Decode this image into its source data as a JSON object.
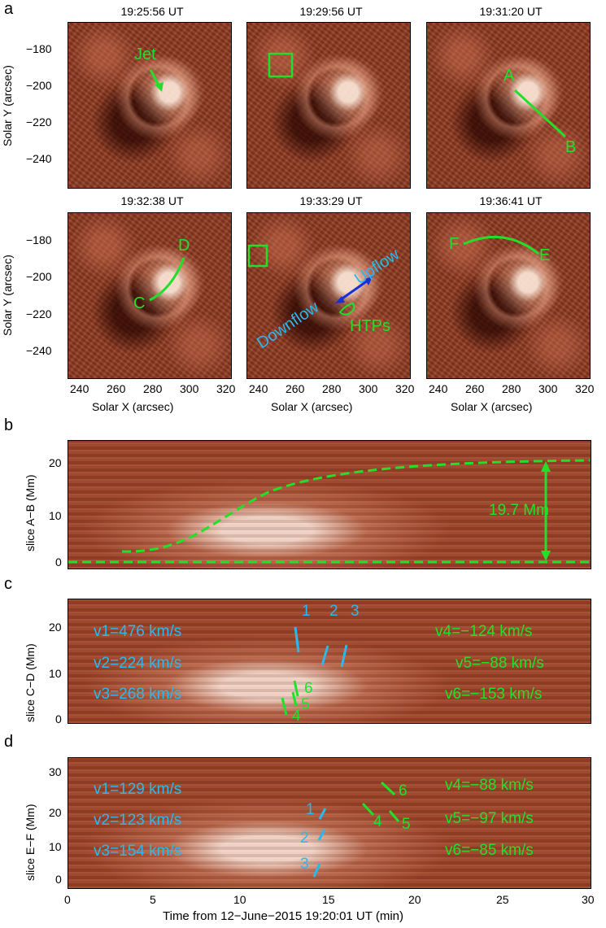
{
  "panel_a": {
    "letter": "a",
    "titles": [
      "19:25:56 UT",
      "19:29:56 UT",
      "19:31:20 UT",
      "19:32:38 UT",
      "19:33:29 UT",
      "19:36:41 UT"
    ],
    "ylabel": "Solar Y (arcsec)",
    "xlabel": "Solar X (arcsec)",
    "yticks": [
      "−180",
      "−200",
      "−220",
      "−240"
    ],
    "xticks": [
      "240",
      "260",
      "280",
      "300",
      "320"
    ],
    "annotations": {
      "jet": "Jet",
      "A": "A",
      "B": "B",
      "C": "C",
      "D": "D",
      "E": "E",
      "F": "F",
      "downflow": "Downflow",
      "upflow": "Upflow",
      "htps": "HTPs"
    }
  },
  "panel_b": {
    "letter": "b",
    "ylabel": "slice A−B (Mm)",
    "yticks": [
      "0",
      "10",
      "20"
    ],
    "annotation": "19.7 Mm"
  },
  "panel_c": {
    "letter": "c",
    "ylabel": "slice C−D (Mm)",
    "yticks": [
      "0",
      "10",
      "20"
    ],
    "left_labels": [
      "v1=476 km/s",
      "v2=224 km/s",
      "v3=268 km/s"
    ],
    "right_labels": [
      "v4=−124 km/s",
      "v5=−88 km/s",
      "v6=−153 km/s"
    ],
    "track_numbers": [
      "1",
      "2",
      "3",
      "4",
      "5",
      "6"
    ]
  },
  "panel_d": {
    "letter": "d",
    "ylabel": "slice E−F (Mm)",
    "yticks": [
      "0",
      "10",
      "20",
      "30"
    ],
    "left_labels": [
      "v1=129 km/s",
      "v2=123 km/s",
      "v3=154 km/s"
    ],
    "right_labels": [
      "v4=−88 km/s",
      "v5=−97 km/s",
      "v6=−85 km/s"
    ],
    "track_numbers": [
      "1",
      "2",
      "3",
      "4",
      "5",
      "6"
    ]
  },
  "time_axis": {
    "xlabel": "Time from 12−June−2015 19:20:01 UT (min)",
    "xticks": [
      "0",
      "5",
      "10",
      "15",
      "20",
      "25",
      "30"
    ]
  },
  "colors": {
    "annotation_green": "#22e02a",
    "annotation_cyan": "#2ab8ef",
    "annotation_blue": "#1a2fd8"
  }
}
